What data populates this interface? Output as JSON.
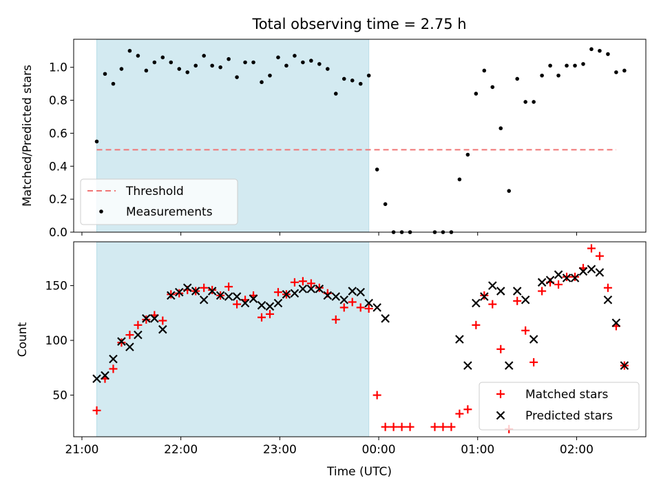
{
  "chart_data": [
    {
      "type": "scatter",
      "title": "Total observing time = 2.75 h",
      "ylabel": "Matched/Predicted stars",
      "ylim": [
        0,
        1.17
      ],
      "yticks": [
        "0.0",
        "0.2",
        "0.4",
        "0.6",
        "0.8",
        "1.0"
      ],
      "x_start": "21:09",
      "x_step_minutes": 5,
      "xlim": [
        "20:55",
        "02:42"
      ],
      "shaded_interval": [
        "21:09",
        "23:54"
      ],
      "shaded_color": "#d3eaf1",
      "threshold": {
        "name": "Threshold",
        "value": 0.5,
        "x_range": [
          "21:09",
          "02:24"
        ],
        "color": "#f07575"
      },
      "series": [
        {
          "name": "Measurements",
          "color": "#000000",
          "values": [
            0.55,
            0.96,
            0.9,
            0.99,
            1.1,
            1.07,
            0.98,
            1.03,
            1.06,
            1.03,
            0.99,
            0.97,
            1.01,
            1.07,
            1.01,
            1.0,
            1.05,
            0.94,
            1.03,
            1.03,
            0.91,
            0.95,
            1.06,
            1.01,
            1.07,
            1.03,
            1.04,
            1.02,
            0.99,
            0.84,
            0.93,
            0.92,
            0.9,
            0.95,
            0.38,
            0.17,
            0.0,
            0.0,
            0.0,
            null,
            null,
            0.0,
            0.0,
            0.0,
            0.32,
            0.47,
            0.84,
            0.98,
            0.88,
            0.63,
            0.25,
            0.93,
            0.79,
            0.79,
            0.95,
            1.01,
            0.95,
            1.01,
            1.01,
            1.02,
            1.11,
            1.1,
            1.08,
            0.97,
            0.98
          ]
        }
      ],
      "legend": {
        "placement": "lower-left",
        "entries": [
          "Threshold",
          "Measurements"
        ]
      }
    },
    {
      "type": "scatter",
      "xlabel": "Time (UTC)",
      "ylabel": "Count",
      "ylim": [
        12,
        190
      ],
      "yticks": [
        "50",
        "100",
        "150"
      ],
      "xticks": [
        "21:00",
        "22:00",
        "23:00",
        "00:00",
        "01:00",
        "02:00"
      ],
      "series": [
        {
          "name": "Matched stars",
          "marker": "+",
          "color": "#ff0000",
          "values": [
            36,
            65,
            74,
            98,
            105,
            114,
            119,
            123,
            118,
            142,
            143,
            146,
            145,
            148,
            146,
            141,
            149,
            133,
            137,
            141,
            121,
            124,
            144,
            142,
            153,
            154,
            152,
            148,
            143,
            119,
            130,
            135,
            130,
            129,
            50,
            21,
            21,
            21,
            21,
            null,
            null,
            21,
            21,
            21,
            33,
            37,
            114,
            141,
            133,
            92,
            19,
            136,
            109,
            80,
            145,
            153,
            151,
            158,
            158,
            166,
            184,
            177,
            148,
            113,
            77
          ]
        },
        {
          "name": "Predicted stars",
          "marker": "x",
          "color": "#000000",
          "values": [
            65,
            68,
            83,
            99,
            94,
            105,
            120,
            120,
            110,
            141,
            144,
            148,
            145,
            137,
            145,
            141,
            140,
            140,
            134,
            138,
            132,
            131,
            134,
            142,
            143,
            147,
            147,
            147,
            141,
            140,
            137,
            145,
            144,
            134,
            130,
            120,
            null,
            null,
            null,
            null,
            null,
            null,
            null,
            null,
            101,
            77,
            134,
            140,
            150,
            145,
            77,
            145,
            137,
            101,
            153,
            155,
            160,
            157,
            157,
            163,
            165,
            162,
            137,
            116,
            77
          ]
        }
      ],
      "legend": {
        "placement": "lower-right",
        "entries": [
          "Matched stars",
          "Predicted stars"
        ]
      }
    }
  ]
}
